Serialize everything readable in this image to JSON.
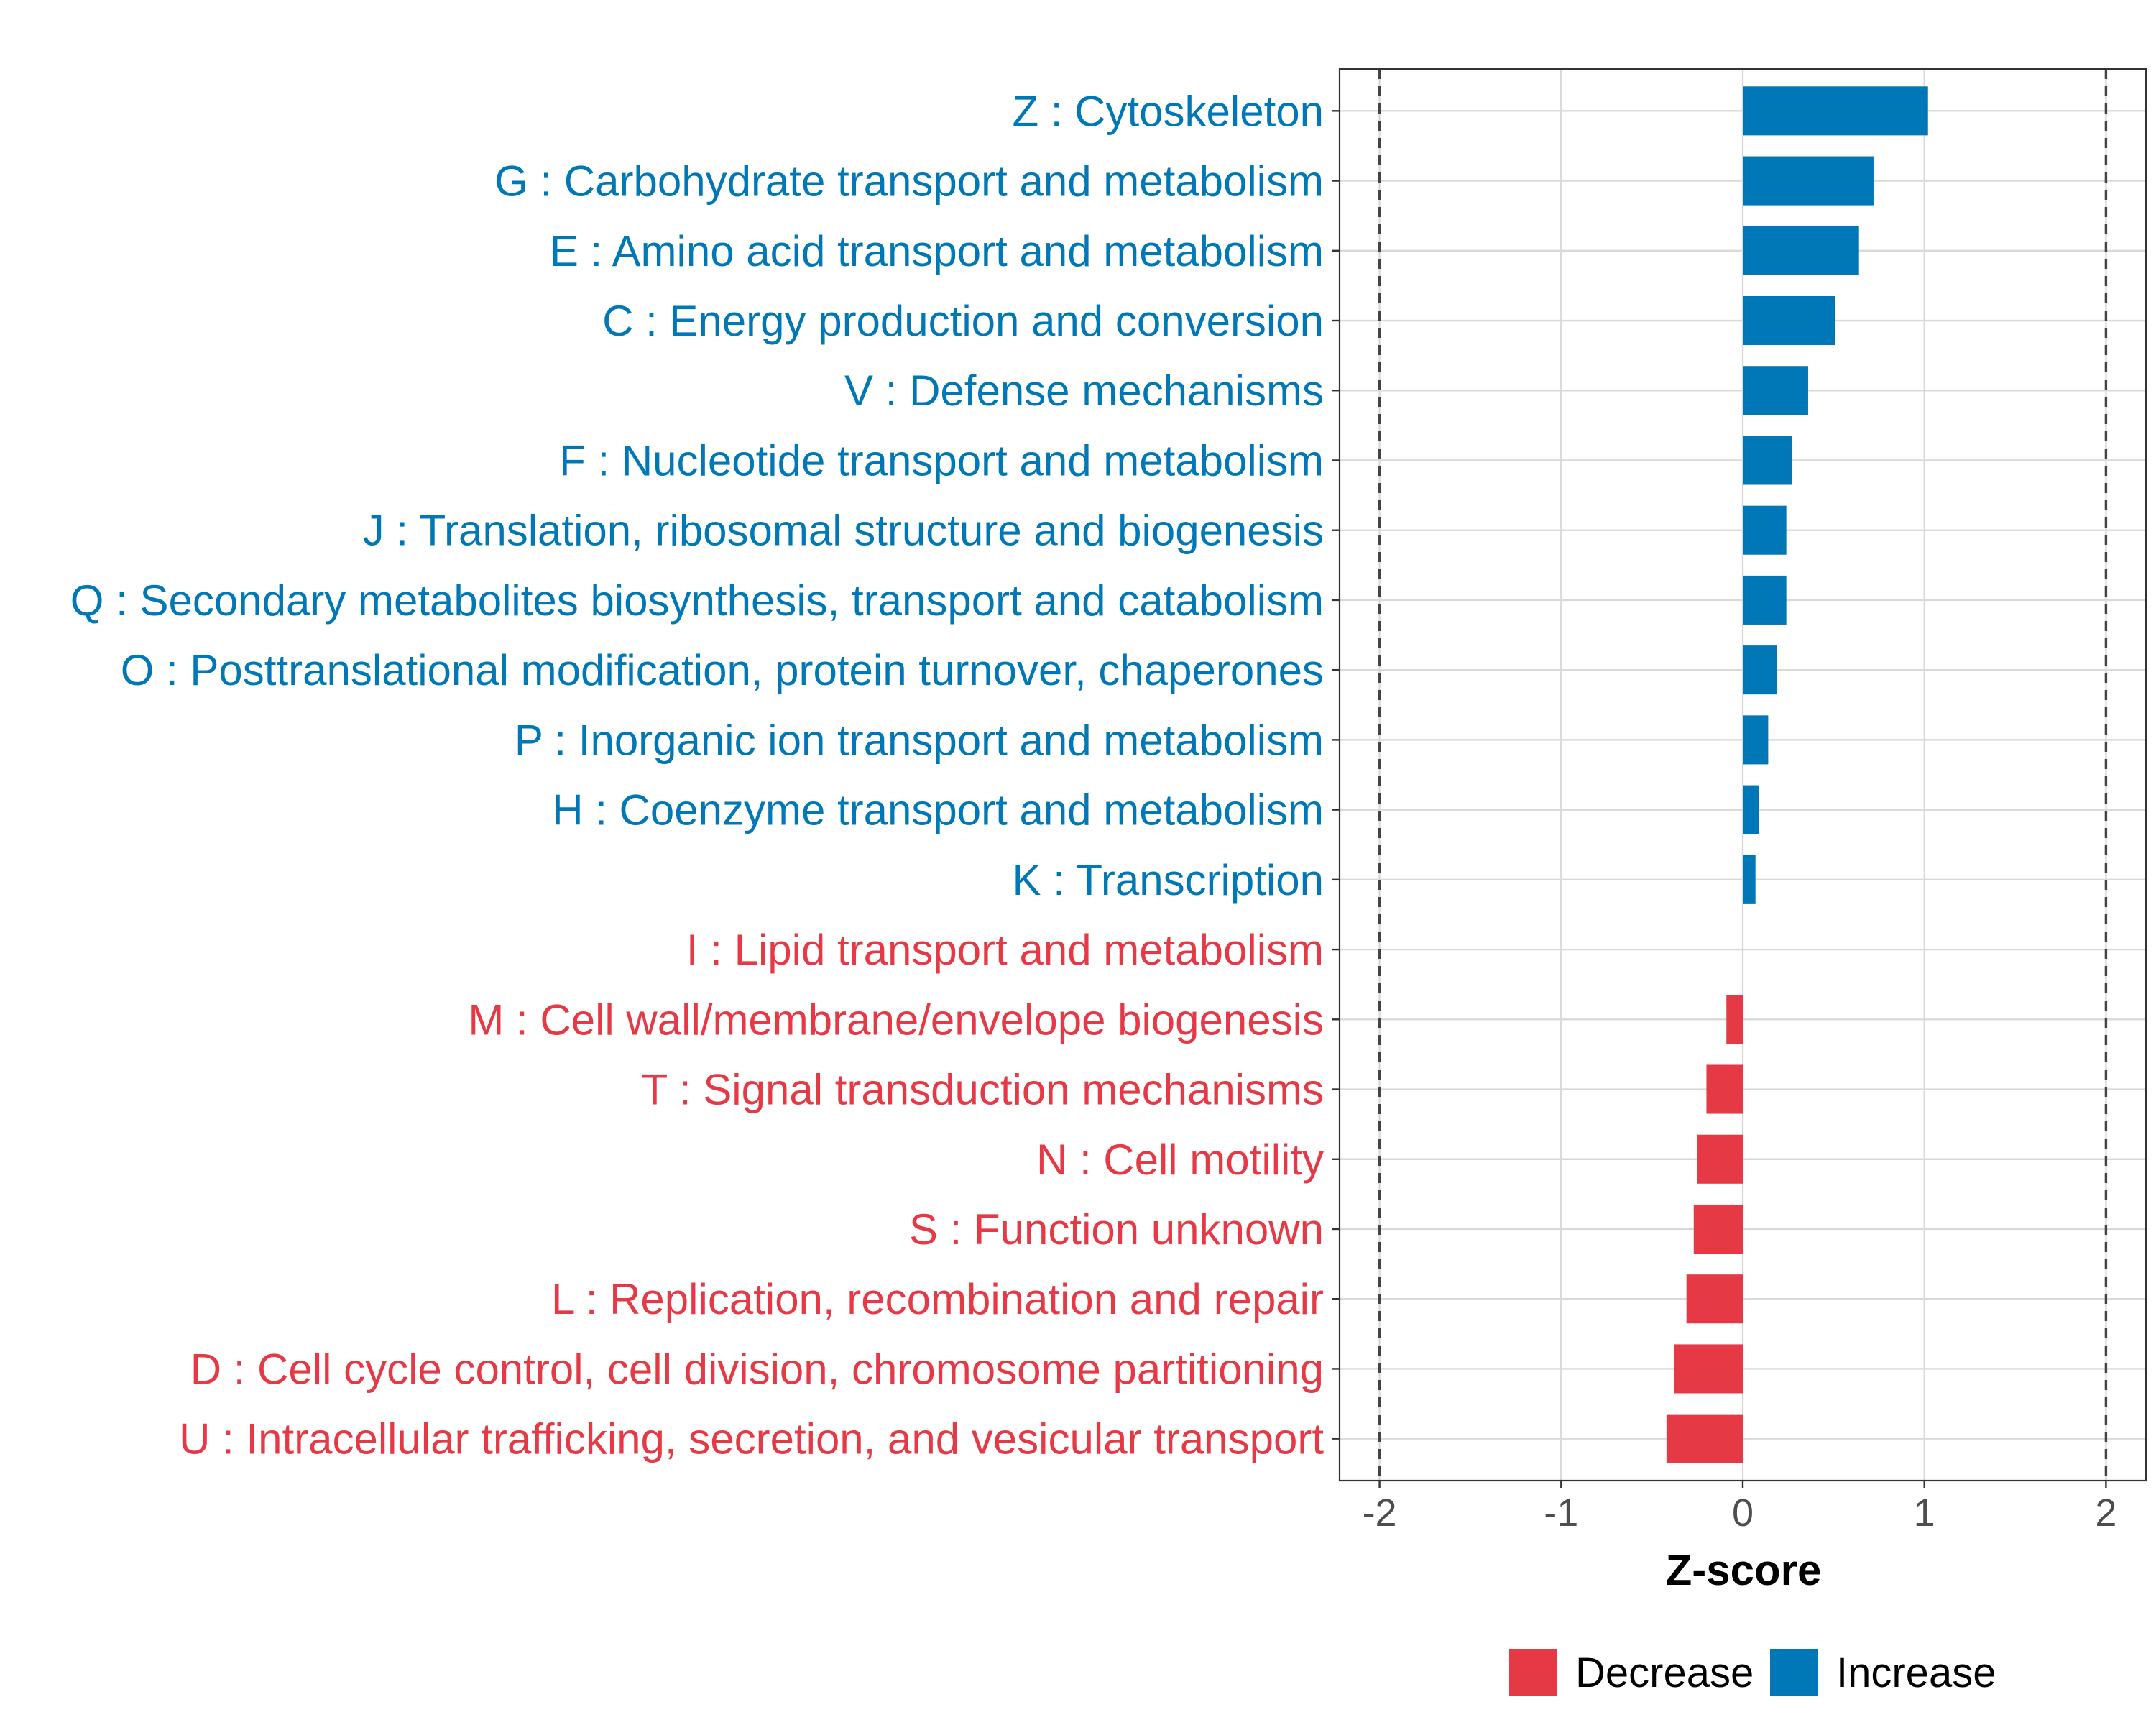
{
  "chart_data": {
    "type": "bar",
    "orientation": "horizontal",
    "title": "",
    "xlabel": "Z-score",
    "ylabel": "",
    "xlim": [
      -2.22,
      2.22
    ],
    "x_ticks": [
      -2,
      -1,
      0,
      1,
      2
    ],
    "x_tick_labels": [
      "-2",
      "-1",
      "0",
      "1",
      "2"
    ],
    "reference_lines": [
      -2,
      2
    ],
    "grid": true,
    "legend_position": "bottom",
    "colors": {
      "Decrease": "#E63946",
      "Increase": "#0077B6"
    },
    "legend": [
      {
        "name": "Decrease",
        "color": "#E63946"
      },
      {
        "name": "Increase",
        "color": "#0077B6"
      }
    ],
    "categories": [
      "Z : Cytoskeleton",
      "G : Carbohydrate transport and metabolism",
      "E : Amino acid transport and metabolism",
      "C : Energy production and conversion",
      "V : Defense mechanisms",
      "F : Nucleotide transport and metabolism",
      "J : Translation, ribosomal structure and biogenesis",
      "Q : Secondary metabolites biosynthesis, transport and catabolism",
      "O : Posttranslational modification, protein turnover, chaperones",
      "P : Inorganic ion transport and metabolism",
      "H : Coenzyme transport and metabolism",
      "K : Transcription",
      "I : Lipid transport and metabolism",
      "M : Cell wall/membrane/envelope biogenesis",
      "T : Signal transduction mechanisms",
      "N : Cell motility",
      "S : Function unknown",
      "L : Replication, recombination and repair",
      "D : Cell cycle control, cell division, chromosome partitioning",
      "U : Intracellular trafficking, secretion, and vesicular transport"
    ],
    "values": [
      1.02,
      0.72,
      0.64,
      0.51,
      0.36,
      0.27,
      0.24,
      0.24,
      0.19,
      0.14,
      0.09,
      0.07,
      0.0,
      -0.09,
      -0.2,
      -0.25,
      -0.27,
      -0.31,
      -0.38,
      -0.42
    ],
    "groups": [
      "Increase",
      "Increase",
      "Increase",
      "Increase",
      "Increase",
      "Increase",
      "Increase",
      "Increase",
      "Increase",
      "Increase",
      "Increase",
      "Increase",
      "Decrease",
      "Decrease",
      "Decrease",
      "Decrease",
      "Decrease",
      "Decrease",
      "Decrease",
      "Decrease"
    ]
  }
}
